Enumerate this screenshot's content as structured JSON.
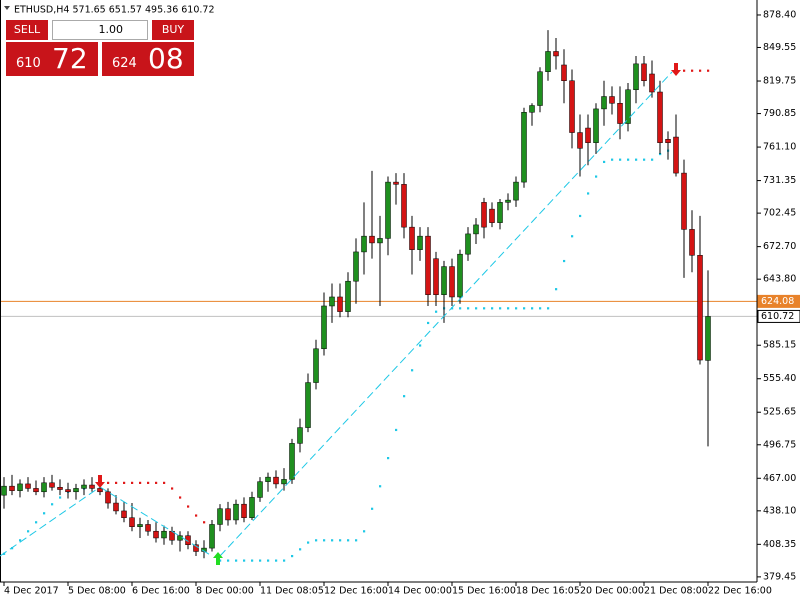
{
  "chart_data": {
    "type": "candlestick",
    "title": "ETHUSD,H4  571.65 651.57 495.36 610.72",
    "up_color": "#1f8f1f",
    "down_color": "#d41414",
    "categories": [
      "4 Dec 2017",
      null,
      null,
      null,
      null,
      null,
      null,
      null,
      "5 Dec 08:00",
      null,
      null,
      null,
      null,
      null,
      null,
      null,
      "6 Dec 16:00",
      null,
      null,
      null,
      null,
      null,
      null,
      null,
      "8 Dec 00:00",
      null,
      null,
      null,
      null,
      null,
      null,
      null,
      "11 Dec 08:05",
      null,
      null,
      null,
      null,
      null,
      null,
      null,
      "12 Dec 16:00",
      null,
      null,
      null,
      null,
      null,
      null,
      null,
      "14 Dec 00:00",
      null,
      null,
      null,
      null,
      null,
      null,
      null,
      "15 Dec 16:00",
      null,
      null,
      null,
      null,
      null,
      null,
      null,
      "18 Dec 16:05",
      null,
      null,
      null,
      null,
      null,
      null,
      null,
      "20 Dec 00:00",
      null,
      null,
      null,
      null,
      null,
      null,
      null,
      "21 Dec 08:00",
      null,
      null,
      null,
      null,
      null,
      null,
      null,
      "22 Dec 16:00"
    ],
    "open": [
      452,
      460,
      456,
      462,
      458,
      455,
      463,
      459,
      457,
      455,
      458,
      461,
      458,
      455,
      445,
      438,
      432,
      424,
      426,
      420,
      414,
      420,
      412,
      416,
      408,
      402,
      405,
      426,
      440,
      430,
      444,
      432,
      450,
      464,
      468,
      462,
      466,
      498,
      512,
      552,
      582,
      620,
      628,
      615,
      642,
      668,
      682,
      676,
      680,
      730,
      728,
      690,
      670,
      682,
      662,
      630,
      655,
      628,
      666,
      684,
      712,
      706,
      694,
      712,
      714,
      730,
      792,
      798,
      828,
      846,
      834,
      820,
      774,
      778,
      765,
      795,
      806,
      800,
      782,
      812,
      835,
      826,
      810,
      768,
      770,
      738,
      688,
      665,
      571.65
    ],
    "high": [
      468,
      470,
      466,
      468,
      465,
      468,
      470,
      466,
      463,
      462,
      466,
      468,
      463,
      458,
      452,
      446,
      445,
      432,
      430,
      428,
      425,
      424,
      420,
      420,
      412,
      412,
      430,
      444,
      446,
      448,
      450,
      455,
      468,
      472,
      474,
      476,
      502,
      520,
      560,
      590,
      632,
      640,
      640,
      650,
      680,
      712,
      740,
      700,
      735,
      738,
      738,
      700,
      690,
      690,
      668,
      660,
      662,
      670,
      690,
      698,
      716,
      712,
      715,
      720,
      735,
      796,
      800,
      832,
      865,
      858,
      848,
      830,
      790,
      790,
      800,
      820,
      815,
      815,
      818,
      842,
      842,
      838,
      820,
      775,
      790,
      750,
      705,
      700,
      651.57
    ],
    "low": [
      440,
      452,
      450,
      455,
      452,
      450,
      456,
      452,
      449,
      448,
      452,
      455,
      452,
      440,
      435,
      428,
      420,
      414,
      416,
      410,
      408,
      408,
      402,
      404,
      398,
      396,
      402,
      420,
      425,
      426,
      428,
      430,
      446,
      455,
      458,
      456,
      462,
      490,
      508,
      546,
      576,
      605,
      610,
      610,
      622,
      648,
      662,
      620,
      665,
      710,
      680,
      648,
      660,
      620,
      620,
      605,
      620,
      622,
      660,
      675,
      680,
      690,
      688,
      705,
      708,
      725,
      780,
      792,
      820,
      830,
      800,
      760,
      735,
      745,
      755,
      780,
      790,
      768,
      775,
      800,
      815,
      805,
      755,
      750,
      735,
      645,
      650,
      568,
      495.36
    ],
    "close": [
      460,
      456,
      462,
      458,
      455,
      463,
      459,
      457,
      455,
      458,
      461,
      458,
      455,
      445,
      438,
      432,
      424,
      426,
      420,
      414,
      420,
      412,
      416,
      408,
      402,
      405,
      426,
      440,
      430,
      444,
      432,
      450,
      464,
      468,
      462,
      466,
      498,
      512,
      552,
      582,
      620,
      628,
      615,
      642,
      668,
      682,
      676,
      680,
      730,
      728,
      690,
      670,
      682,
      630,
      630,
      655,
      628,
      666,
      684,
      692,
      690,
      694,
      712,
      714,
      730,
      792,
      798,
      828,
      846,
      842,
      820,
      774,
      760,
      765,
      795,
      806,
      800,
      782,
      812,
      835,
      820,
      810,
      765,
      765,
      738,
      688,
      665,
      572,
      610.72
    ],
    "indicators": [
      {
        "color": "#1ec8e6",
        "values": [
          400,
          405,
          412,
          420,
          428,
          436,
          444,
          450,
          455,
          457,
          458,
          459,
          null,
          null,
          null,
          null,
          null,
          null,
          null,
          null,
          null,
          null,
          null,
          null,
          null,
          null,
          null,
          394,
          394,
          394,
          394,
          394,
          394,
          394,
          394,
          394,
          398,
          404,
          410,
          412,
          412,
          412,
          412,
          412,
          412,
          420,
          440,
          460,
          485,
          510,
          540,
          563,
          585,
          605,
          615,
          618,
          618,
          618,
          618,
          618,
          618,
          618,
          618,
          618,
          618,
          618,
          618,
          618,
          618,
          635,
          660,
          682,
          700,
          720,
          735,
          748,
          750,
          750,
          750,
          750,
          750,
          750,
          755,
          758,
          null,
          null,
          null,
          null,
          null
        ]
      },
      {
        "color": "#e01818",
        "values": [
          null,
          null,
          null,
          null,
          null,
          null,
          null,
          null,
          null,
          null,
          null,
          null,
          463,
          463,
          463,
          463,
          463,
          463,
          463,
          463,
          463,
          458,
          450,
          442,
          434,
          428,
          null,
          null,
          null,
          null,
          null,
          null,
          null,
          null,
          null,
          null,
          null,
          null,
          null,
          null,
          null,
          null,
          null,
          null,
          null,
          null,
          null,
          null,
          null,
          null,
          null,
          null,
          null,
          null,
          null,
          null,
          null,
          null,
          null,
          null,
          null,
          null,
          null,
          null,
          null,
          null,
          null,
          null,
          null,
          null,
          null,
          null,
          null,
          null,
          null,
          null,
          null,
          null,
          null,
          null,
          null,
          null,
          null,
          null,
          829,
          829,
          829,
          829,
          829
        ]
      }
    ],
    "price_lines": [
      {
        "value": 624.08,
        "color": "#e8822a",
        "text_color": "#ffffff"
      },
      {
        "value": 610.72,
        "color": "#c0c0c0",
        "text_color": "#000000"
      }
    ],
    "ylim": [
      374.9,
      891.7
    ],
    "yticks": [
      {
        "value": 878.4,
        "label": "878.40"
      },
      849.55,
      819.75,
      790.85,
      {
        "value": 761.1,
        "label": "761.10"
      },
      731.35,
      702.45,
      {
        "value": 672.7,
        "label": "672.70"
      },
      {
        "value": 643.8,
        "label": "643.80"
      },
      585.15,
      {
        "value": 555.4,
        "label": "555.40"
      },
      525.65,
      496.75,
      {
        "value": 467,
        "label": "467.00"
      },
      {
        "value": 438.1,
        "label": "438.10"
      },
      408.35,
      379.45
    ]
  },
  "trade_panel": {
    "sell": "SELL",
    "buy": "BUY",
    "volume": "1.00",
    "bid_big": "610",
    "bid_small": "72",
    "ask_big": "624",
    "ask_small": "08"
  }
}
